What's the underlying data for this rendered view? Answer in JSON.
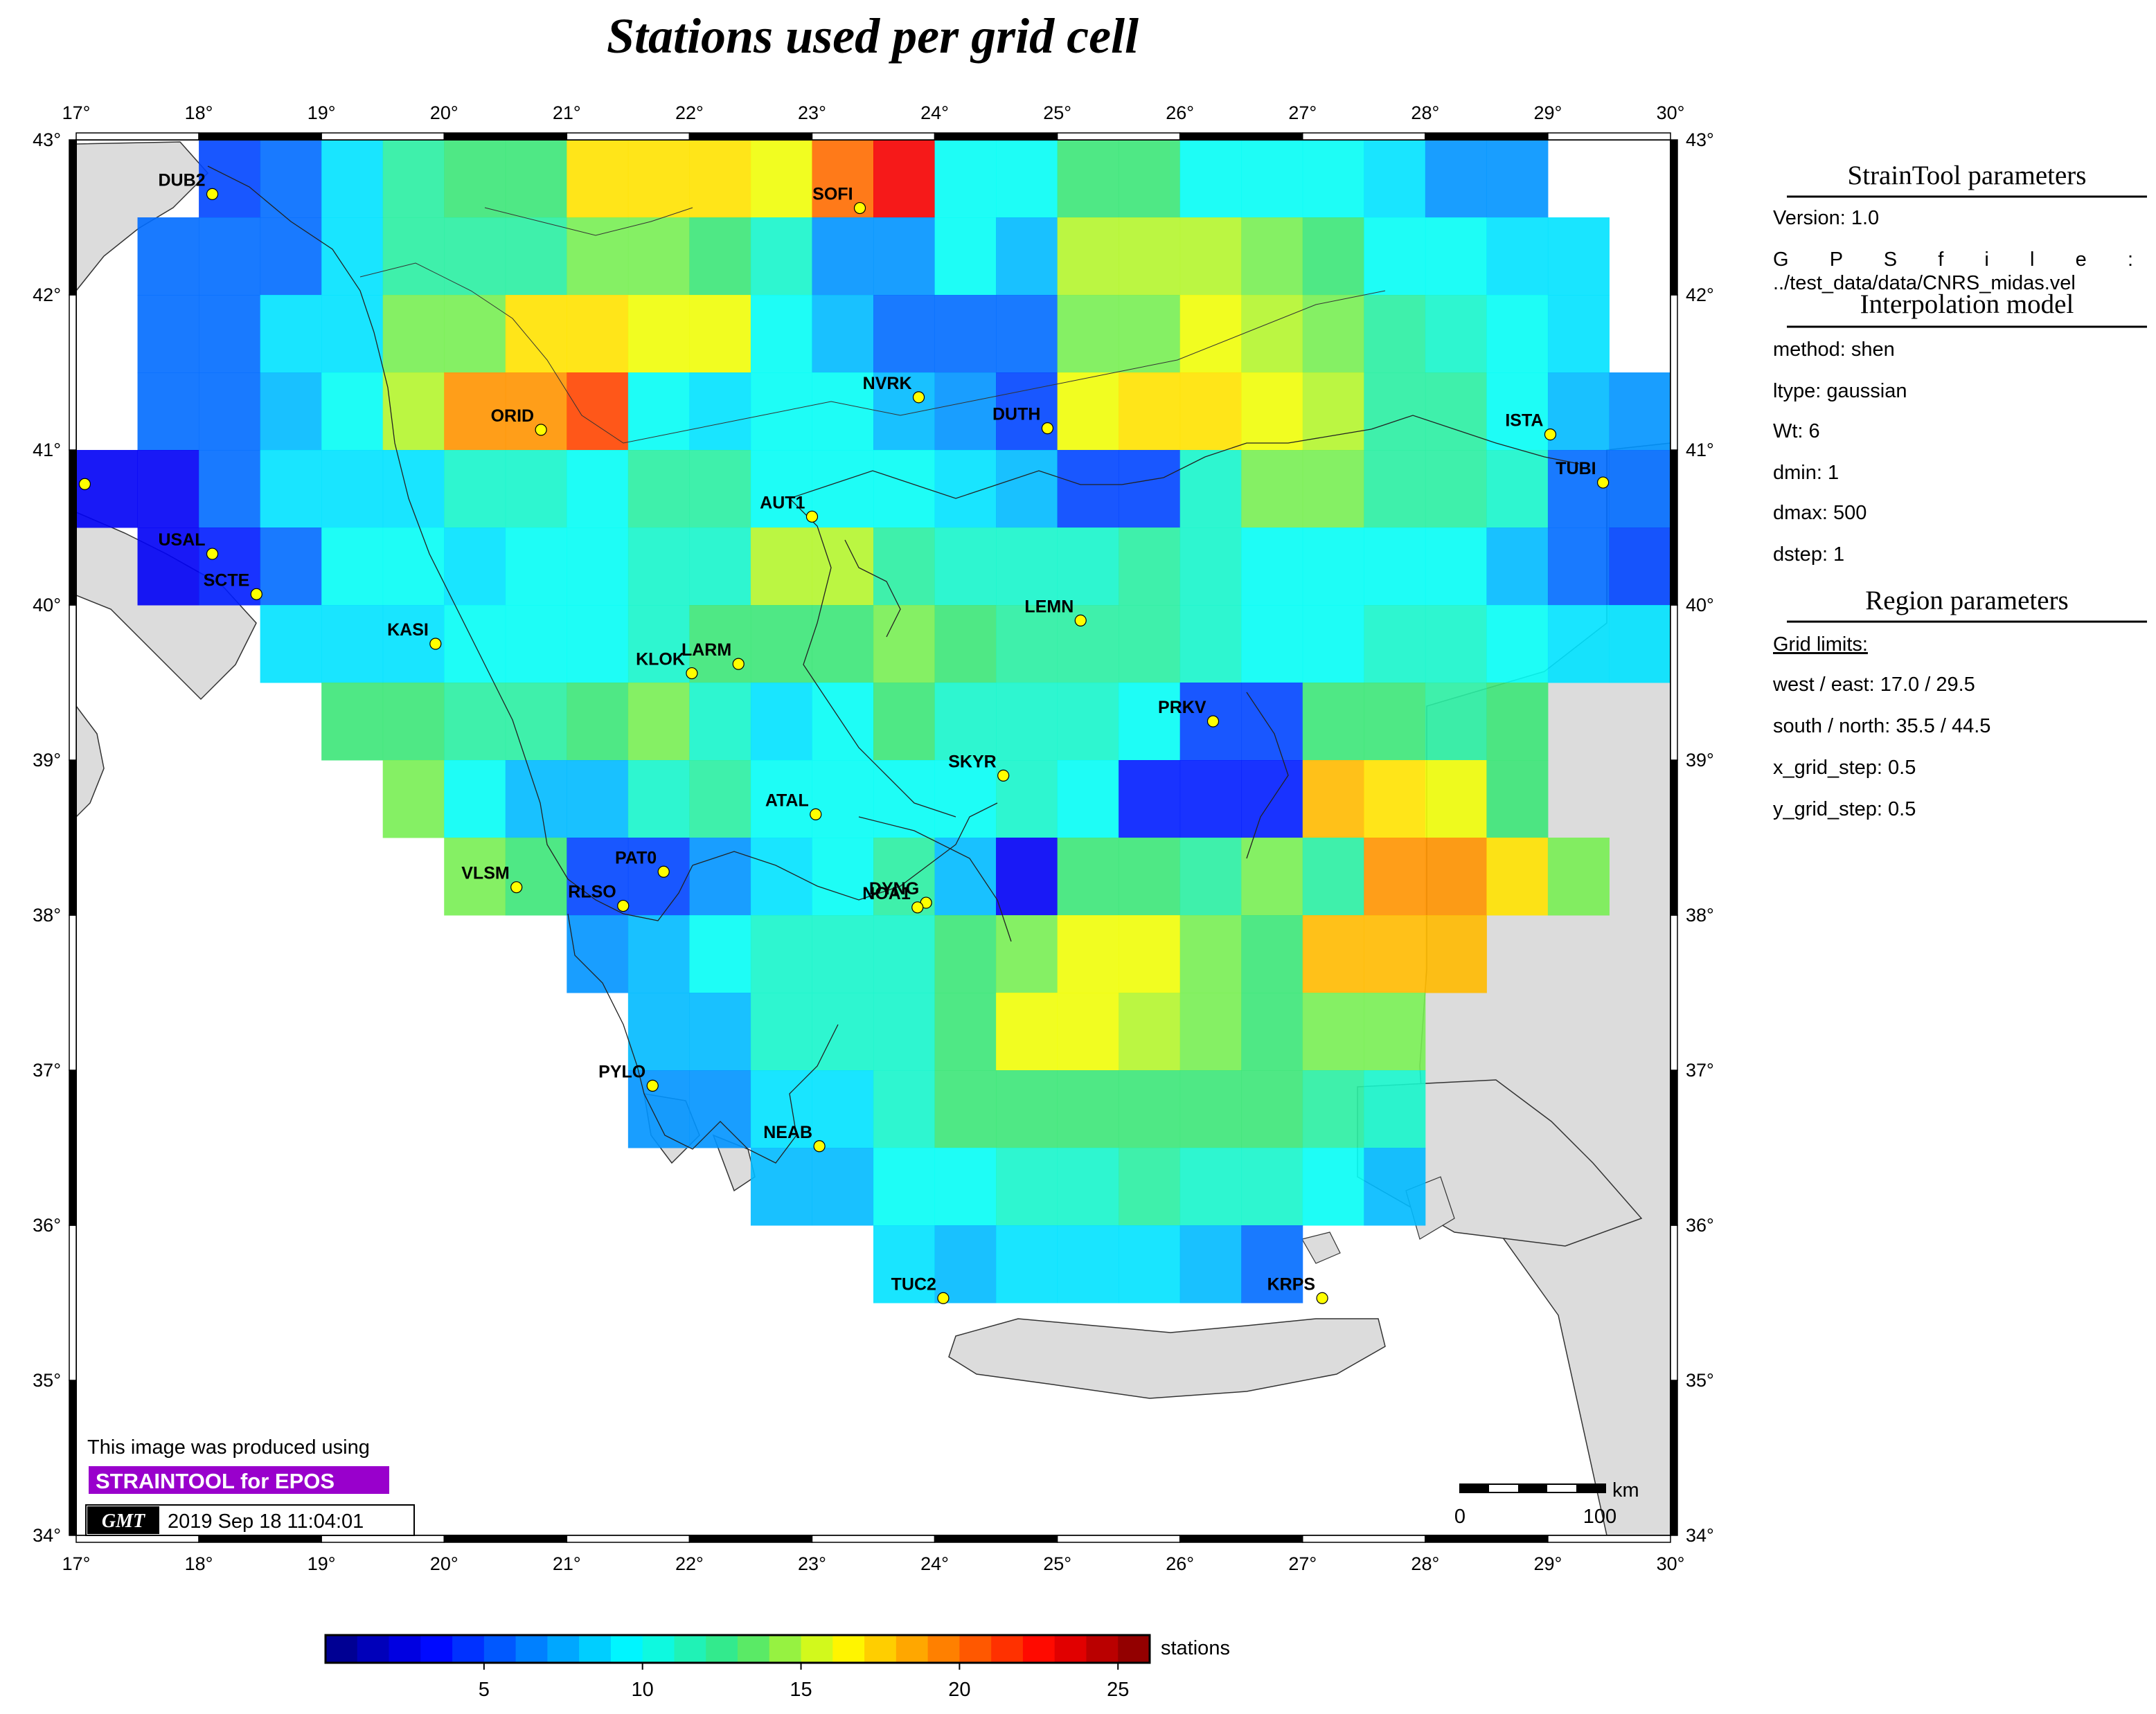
{
  "title": "Stations used per grid cell",
  "map": {
    "lon_range": [
      17,
      30
    ],
    "lat_range": [
      34,
      43
    ],
    "lon_ticks": [
      "17°",
      "18°",
      "19°",
      "20°",
      "21°",
      "22°",
      "23°",
      "24°",
      "25°",
      "26°",
      "27°",
      "28°",
      "29°",
      "30°"
    ],
    "lat_ticks": [
      "34°",
      "35°",
      "36°",
      "37°",
      "38°",
      "39°",
      "40°",
      "41°",
      "42°",
      "43°"
    ],
    "land_color": "#dcdcdc",
    "sea_color": "#ffffff"
  },
  "grid": {
    "cell_size_deg": 0.5,
    "rows": [
      {
        "lat": 42.5,
        "lon_start": 18.0,
        "values": [
          5,
          6,
          9,
          12,
          13,
          13,
          17,
          17,
          17,
          16,
          20,
          23,
          10,
          10,
          13,
          13,
          10,
          10,
          10,
          9,
          7,
          7
        ]
      },
      {
        "lat": 42.0,
        "lon_start": 17.5,
        "values": [
          6,
          6,
          6,
          9,
          12,
          12,
          12,
          14,
          14,
          13,
          11,
          7,
          7,
          10,
          8,
          15,
          15,
          15,
          14,
          13,
          10,
          10,
          9,
          9
        ]
      },
      {
        "lat": 41.5,
        "lon_start": 17.5,
        "values": [
          6,
          6,
          9,
          9,
          14,
          14,
          17,
          17,
          16,
          16,
          10,
          8,
          6,
          6,
          6,
          14,
          14,
          16,
          15,
          14,
          12,
          11,
          10,
          9
        ]
      },
      {
        "lat": 41.0,
        "lon_start": 17.5,
        "values": [
          6,
          6,
          8,
          10,
          15,
          19,
          19,
          21,
          10,
          9,
          10,
          10,
          8,
          7,
          5,
          16,
          17,
          17,
          16,
          15,
          12,
          12,
          10,
          8,
          7
        ]
      },
      {
        "lat": 40.5,
        "lon_start": 17.0,
        "values": [
          3,
          3,
          6,
          9,
          9,
          9,
          11,
          11,
          10,
          12,
          12,
          10,
          10,
          10,
          9,
          8,
          5,
          5,
          11,
          14,
          14,
          12,
          12,
          11,
          6,
          6,
          5
        ]
      },
      {
        "lat": 40.0,
        "lon_start": 17.5,
        "values": [
          3,
          4,
          6,
          10,
          10,
          9,
          10,
          10,
          11,
          11,
          15,
          15,
          12,
          11,
          11,
          11,
          12,
          11,
          10,
          10,
          10,
          10,
          8,
          6,
          5,
          5
        ]
      },
      {
        "lat": 39.5,
        "lon_start": 18.5,
        "values": [
          9,
          9,
          9,
          10,
          10,
          10,
          11,
          13,
          13,
          13,
          14,
          13,
          12,
          12,
          12,
          11,
          10,
          10,
          11,
          11,
          10,
          9,
          9,
          10
        ]
      },
      {
        "lat": 39.0,
        "lon_start": 19.0,
        "values": [
          13,
          13,
          12,
          12,
          13,
          14,
          11,
          9,
          10,
          13,
          11,
          11,
          11,
          10,
          5,
          5,
          13,
          13,
          12,
          13
        ]
      },
      {
        "lat": 38.5,
        "lon_start": 19.5,
        "values": [
          14,
          10,
          8,
          8,
          11,
          12,
          10,
          10,
          10,
          10,
          11,
          10,
          4,
          4,
          4,
          18,
          17,
          16,
          13
        ]
      },
      {
        "lat": 38.0,
        "lon_start": 20.0,
        "values": [
          14,
          13,
          5,
          5,
          7,
          9,
          10,
          12,
          8,
          3,
          13,
          13,
          12,
          14,
          12,
          19,
          19,
          17,
          14
        ]
      },
      {
        "lat": 37.5,
        "lon_start": 21.0,
        "values": [
          7,
          8,
          10,
          11,
          11,
          11,
          13,
          14,
          16,
          16,
          14,
          13,
          18,
          18,
          18
        ]
      },
      {
        "lat": 37.0,
        "lon_start": 21.5,
        "values": [
          8,
          8,
          11,
          11,
          11,
          13,
          16,
          16,
          15,
          14,
          13,
          14,
          14
        ]
      },
      {
        "lat": 36.5,
        "lon_start": 21.5,
        "values": [
          7,
          7,
          9,
          9,
          11,
          13,
          13,
          13,
          13,
          13,
          13,
          12,
          11
        ]
      },
      {
        "lat": 36.0,
        "lon_start": 22.5,
        "values": [
          8,
          8,
          10,
          10,
          11,
          11,
          12,
          11,
          11,
          10,
          8
        ]
      },
      {
        "lat": 35.5,
        "lon_start": 23.5,
        "values": [
          9,
          8,
          9,
          9,
          9,
          8,
          6
        ]
      }
    ]
  },
  "stations": [
    {
      "code": "DUB2",
      "lon": 18.11,
      "lat": 42.65
    },
    {
      "code": "SOFI",
      "lon": 23.39,
      "lat": 42.56
    },
    {
      "code": "ORID",
      "lon": 20.79,
      "lat": 41.13
    },
    {
      "code": "NVRK",
      "lon": 23.87,
      "lat": 41.34
    },
    {
      "code": "DUTH",
      "lon": 24.92,
      "lat": 41.14
    },
    {
      "code": "ISTA",
      "lon": 29.02,
      "lat": 41.1
    },
    {
      "code": "TUBI",
      "lon": 29.45,
      "lat": 40.79
    },
    {
      "code": "AUT1",
      "lon": 23.0,
      "lat": 40.57
    },
    {
      "code": "USAL",
      "lon": 18.11,
      "lat": 40.33
    },
    {
      "code": "SCTE",
      "lon": 18.47,
      "lat": 40.07
    },
    {
      "code": "LEMN",
      "lon": 25.19,
      "lat": 39.9
    },
    {
      "code": "KASI",
      "lon": 19.93,
      "lat": 39.75
    },
    {
      "code": "KLOK",
      "lon": 22.02,
      "lat": 39.56
    },
    {
      "code": "LARM",
      "lon": 22.4,
      "lat": 39.62
    },
    {
      "code": "PRKV",
      "lon": 26.27,
      "lat": 39.25
    },
    {
      "code": "SKYR",
      "lon": 24.56,
      "lat": 38.9
    },
    {
      "code": "ATAL",
      "lon": 23.03,
      "lat": 38.65
    },
    {
      "code": "PAT0",
      "lon": 21.79,
      "lat": 38.28
    },
    {
      "code": "VLSM",
      "lon": 20.59,
      "lat": 38.18
    },
    {
      "code": "RLSO",
      "lon": 21.46,
      "lat": 38.06
    },
    {
      "code": "DYNG",
      "lon": 23.93,
      "lat": 38.08
    },
    {
      "code": "NOA1",
      "lon": 23.86,
      "lat": 38.05
    },
    {
      "code": "PYLO",
      "lon": 21.7,
      "lat": 36.9
    },
    {
      "code": "NEAB",
      "lon": 23.06,
      "lat": 36.51
    },
    {
      "code": "TUC2",
      "lon": 24.07,
      "lat": 35.53
    },
    {
      "code": "KRPS",
      "lon": 27.16,
      "lat": 35.53
    },
    {
      "code": "",
      "lon": 17.07,
      "lat": 40.78
    }
  ],
  "panel": {
    "straintool_heading": "StrainTool parameters",
    "version": "Version: 1.0",
    "gps_file_label": "G P S   f i l e :",
    "gps_file_value": "../test_data/data/CNRS_midas.vel",
    "interp_heading": "Interpolation model",
    "method": "method: shen",
    "ltype": "ltype: gaussian",
    "wt": "Wt: 6",
    "dmin": "dmin: 1",
    "dmax": "dmax: 500",
    "dstep": "dstep: 1",
    "region_heading": "Region parameters",
    "grid_limits": "Grid limits:",
    "west_east": "west / east: 17.0 / 29.5",
    "south_north": "south / north: 35.5 / 44.5",
    "x_step": "x_grid_step: 0.5",
    "y_step": "y_grid_step: 0.5"
  },
  "credit": {
    "produced": "This image was produced using",
    "tool": "STRAINTOOL for EPOS",
    "tool_color": "#9900cc",
    "logo": "GMT",
    "timestamp": "2019 Sep 18 11:04:01"
  },
  "scale_bar": {
    "unit": "km",
    "labels": [
      "0",
      "100"
    ]
  },
  "colorbar": {
    "label": "stations",
    "min": 0,
    "max": 26,
    "ticks": [
      "5",
      "10",
      "15",
      "20",
      "25"
    ],
    "tick_values": [
      5,
      10,
      15,
      20,
      25
    ]
  }
}
